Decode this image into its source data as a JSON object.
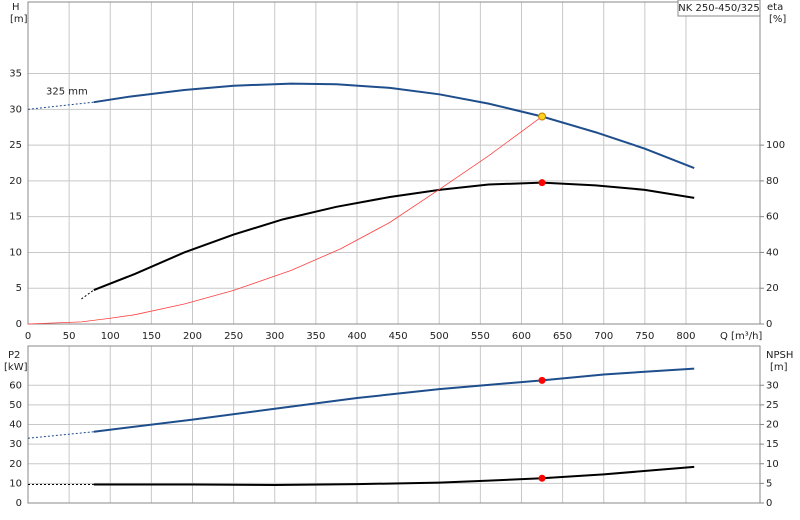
{
  "chart_data": [
    {
      "type": "line",
      "title": "NK 250-450/325",
      "annotation": "325 mm",
      "xlabel": "Q [m³/h]",
      "ylabel": "H",
      "yunit": "[m]",
      "y2label": "eta",
      "y2unit": "[%]",
      "xlim": [
        0,
        890
      ],
      "xticks": [
        0,
        50,
        100,
        150,
        200,
        250,
        300,
        350,
        400,
        450,
        500,
        550,
        600,
        650,
        700,
        750,
        800
      ],
      "ylim": [
        0,
        45
      ],
      "yticks": [
        0,
        5,
        10,
        15,
        20,
        25,
        30,
        35
      ],
      "y2lim": [
        0,
        180
      ],
      "y2ticks": [
        0,
        20,
        40,
        60,
        80,
        100
      ],
      "grid": true,
      "series": [
        {
          "color": "#1f4e8c",
          "dashed": true,
          "axis": "y",
          "x": [
            0,
            80
          ],
          "values": [
            30,
            31
          ]
        },
        {
          "color": "#1f4e8c",
          "dashed": false,
          "axis": "y",
          "x": [
            80,
            125,
            190,
            250,
            320,
            375,
            440,
            500,
            560,
            625,
            690,
            750,
            810
          ],
          "values": [
            31,
            31.8,
            32.7,
            33.3,
            33.6,
            33.5,
            33.0,
            32.1,
            30.8,
            29.0,
            26.8,
            24.5,
            21.8
          ]
        },
        {
          "color": "#000000",
          "dashed": true,
          "axis": "y2",
          "x": [
            65,
            80
          ],
          "values": [
            14,
            19
          ]
        },
        {
          "color": "#000000",
          "dashed": false,
          "axis": "y2",
          "x": [
            80,
            130,
            190,
            250,
            310,
            375,
            440,
            500,
            560,
            625,
            690,
            750,
            810
          ],
          "values": [
            19,
            28,
            40,
            50,
            58.5,
            65.5,
            71,
            75,
            78,
            79,
            77.5,
            75,
            70.5
          ]
        },
        {
          "color": "#ff4040",
          "dashed": false,
          "thin": true,
          "axis": "y",
          "x": [
            0,
            65,
            100,
            130,
            190,
            250,
            320,
            380,
            440,
            500,
            560,
            625
          ],
          "values": [
            0,
            0.3,
            0.8,
            1.3,
            2.8,
            4.7,
            7.5,
            10.5,
            14.2,
            18.8,
            23.5,
            29
          ]
        }
      ],
      "points": [
        {
          "x": 625,
          "value": 79,
          "axis": "y2",
          "color": "#ff0000"
        },
        {
          "x": 625,
          "value": 29,
          "axis": "y",
          "color": "#ffd21f"
        }
      ]
    },
    {
      "type": "line",
      "ylabel": "P2",
      "yunit": "[kW]",
      "y2label": "NPSH",
      "y2unit": "[m]",
      "ylim": [
        0,
        80
      ],
      "yticks": [
        0,
        10,
        20,
        30,
        40,
        50,
        60
      ],
      "y2lim": [
        0,
        40
      ],
      "y2ticks": [
        0,
        5,
        10,
        15,
        20,
        25,
        30
      ],
      "grid": true,
      "series": [
        {
          "color": "#1f4e8c",
          "dashed": true,
          "axis": "y",
          "x": [
            0,
            80
          ],
          "values": [
            33,
            36.3
          ]
        },
        {
          "color": "#1f4e8c",
          "dashed": false,
          "axis": "y",
          "x": [
            80,
            200,
            300,
            400,
            500,
            625,
            700,
            810
          ],
          "values": [
            36.3,
            42.5,
            48,
            53.5,
            58,
            62.5,
            65.5,
            68.5
          ]
        },
        {
          "color": "#000000",
          "dashed": true,
          "axis": "y2",
          "x": [
            0,
            80
          ],
          "values": [
            4.7,
            4.7
          ]
        },
        {
          "color": "#000000",
          "dashed": false,
          "axis": "y2",
          "x": [
            80,
            200,
            300,
            400,
            500,
            560,
            625,
            700,
            810
          ],
          "values": [
            4.7,
            4.7,
            4.6,
            4.8,
            5.2,
            5.7,
            6.3,
            7.3,
            9.2
          ]
        }
      ],
      "points": [
        {
          "x": 625,
          "value": 62.5,
          "axis": "y",
          "color": "#ff0000"
        },
        {
          "x": 625,
          "value": 6.3,
          "axis": "y2",
          "color": "#ff0000"
        }
      ]
    }
  ]
}
